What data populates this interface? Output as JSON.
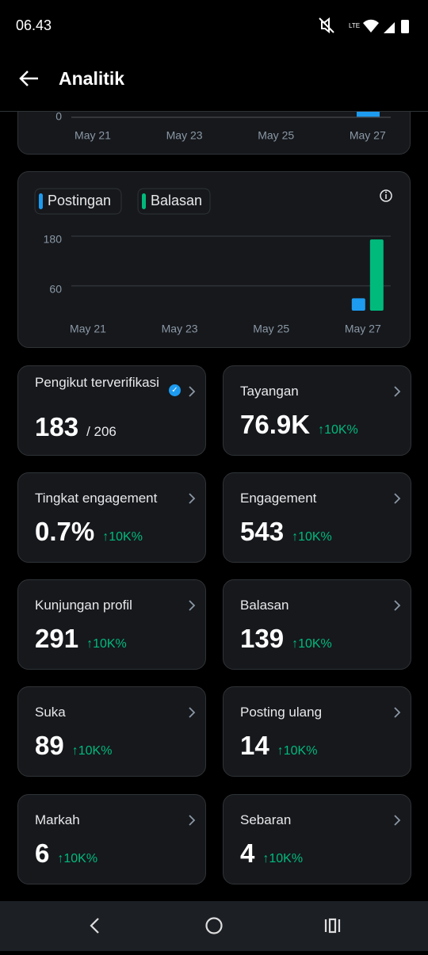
{
  "status_bar": {
    "time": "06.43"
  },
  "header": {
    "title": "Analitik"
  },
  "top_chart": {
    "type": "bar",
    "categories": [
      "May 21",
      null,
      "May 23",
      null,
      "May 25",
      null,
      "May 27"
    ],
    "yticks": [
      0
    ]
  },
  "chart": {
    "type": "bar",
    "categories": [
      "May 21",
      null,
      "May 23",
      null,
      "May 25",
      null,
      "May 27"
    ],
    "ylim": [
      0,
      180
    ],
    "yticks": [
      60,
      180
    ],
    "grid": true,
    "series": [
      {
        "name": "Postingan",
        "color": "#1d9bf0",
        "values": [
          0,
          0,
          0,
          0,
          0,
          0,
          30
        ]
      },
      {
        "name": "Balasan",
        "color": "#00ba7c",
        "values": [
          0,
          0,
          0,
          0,
          0,
          0,
          172
        ]
      }
    ]
  },
  "stats": [
    {
      "label": "Pengikut terverifikasi",
      "value": "183",
      "total": "/ 206"
    },
    {
      "label": "Tayangan",
      "value": "76.9K",
      "change": "10K%"
    },
    {
      "label": "Tingkat engagement",
      "value": "0.7%",
      "change": "10K%"
    },
    {
      "label": "Engagement",
      "value": "543",
      "change": "10K%"
    },
    {
      "label": "Kunjungan profil",
      "value": "291",
      "change": "10K%"
    },
    {
      "label": "Balasan",
      "value": "139",
      "change": "10K%"
    },
    {
      "label": "Suka",
      "value": "89",
      "change": "10K%"
    },
    {
      "label": "Posting ulang",
      "value": "14",
      "change": "10K%"
    },
    {
      "label": "Markah",
      "value": "6",
      "change": "10K%"
    },
    {
      "label": "Sebaran",
      "value": "4",
      "change": "10K%"
    }
  ]
}
